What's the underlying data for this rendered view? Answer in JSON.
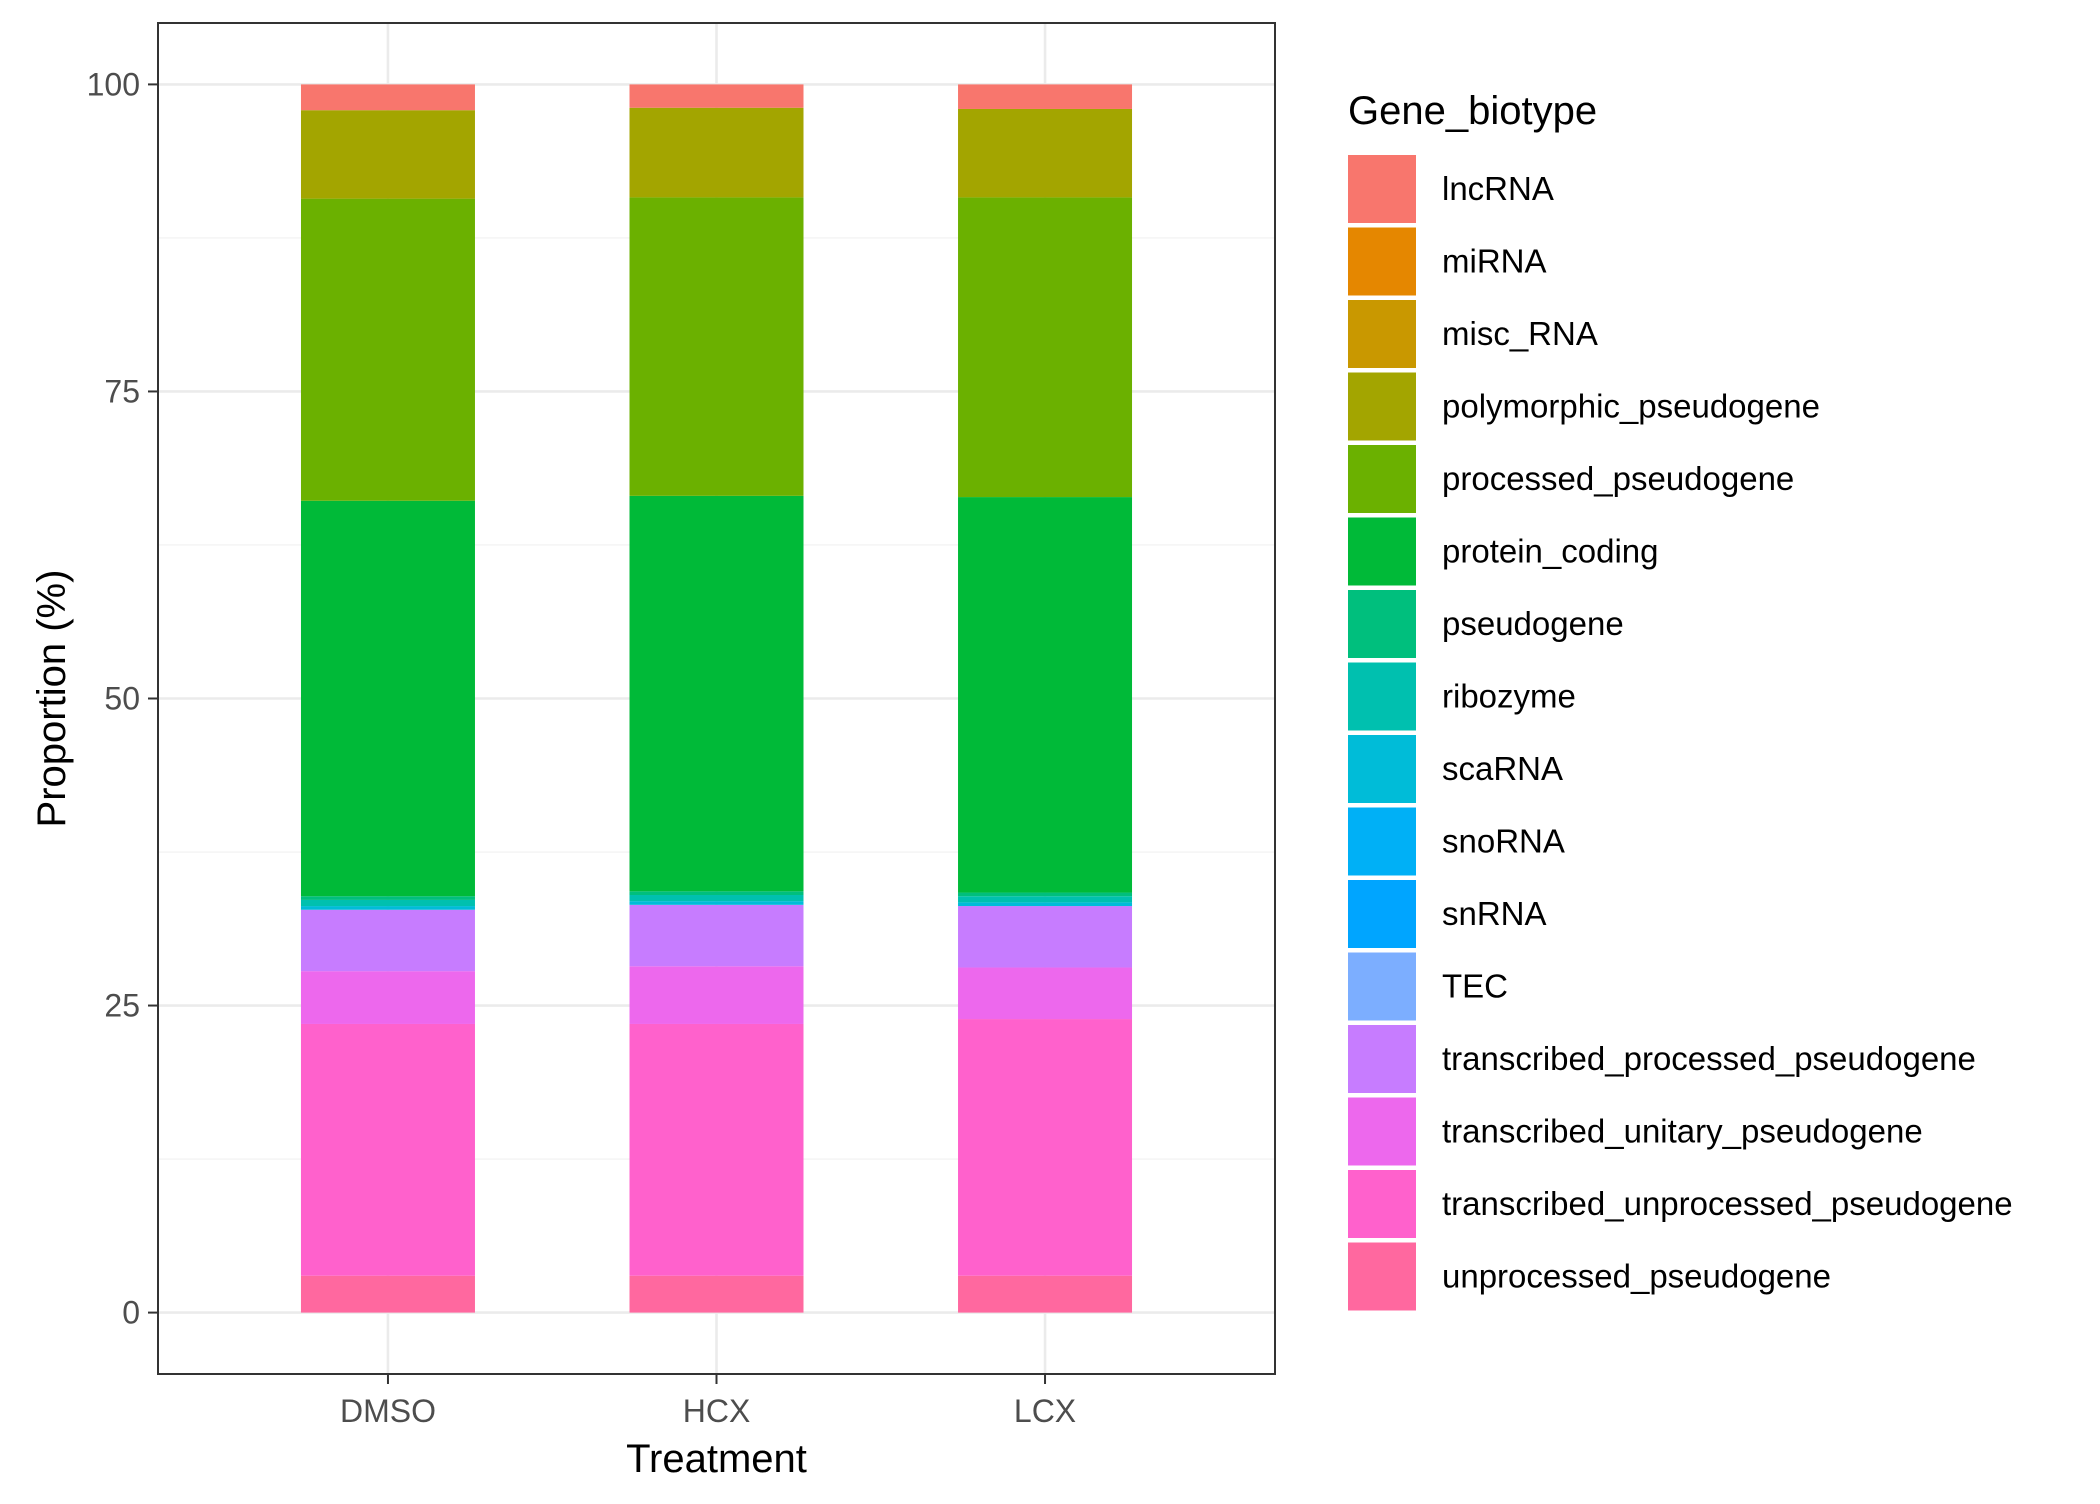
{
  "chart_data": {
    "type": "bar",
    "stacked": true,
    "xlabel": "Treatment",
    "ylabel": "Proportion (%)",
    "ylim": [
      -5,
      105
    ],
    "yticks": [
      0,
      25,
      50,
      75,
      100
    ],
    "grid": true,
    "legend_position": "right",
    "legend_title": "Gene_biotype",
    "categories": [
      "DMSO",
      "HCX",
      "LCX"
    ],
    "series": [
      {
        "name": "lncRNA",
        "color": "#F8766D",
        "values": [
          2.1,
          1.9,
          2.0
        ]
      },
      {
        "name": "miRNA",
        "color": "#E58700",
        "values": [
          0.0,
          0.0,
          0.0
        ]
      },
      {
        "name": "misc_RNA",
        "color": "#C99800",
        "values": [
          0.0,
          0.0,
          0.0
        ]
      },
      {
        "name": "polymorphic_pseudogene",
        "color": "#A3A500",
        "values": [
          7.2,
          7.3,
          7.2
        ]
      },
      {
        "name": "processed_pseudogene",
        "color": "#6BB100",
        "values": [
          24.6,
          24.3,
          24.4
        ]
      },
      {
        "name": "protein_coding",
        "color": "#00BA38",
        "values": [
          32.2,
          32.2,
          32.2
        ]
      },
      {
        "name": "pseudogene",
        "color": "#00BF7D",
        "values": [
          0.3,
          0.3,
          0.3
        ]
      },
      {
        "name": "ribozyme",
        "color": "#00C0AF",
        "values": [
          0.5,
          0.5,
          0.5
        ]
      },
      {
        "name": "scaRNA",
        "color": "#00BCD8",
        "values": [
          0.3,
          0.3,
          0.3
        ]
      },
      {
        "name": "snoRNA",
        "color": "#00B0F6",
        "values": [
          0.0,
          0.0,
          0.0
        ]
      },
      {
        "name": "snRNA",
        "color": "#00A5FF",
        "values": [
          0.0,
          0.0,
          0.0
        ]
      },
      {
        "name": "TEC",
        "color": "#7CAEFF",
        "values": [
          0.0,
          0.0,
          0.0
        ]
      },
      {
        "name": "transcribed_processed_pseudogene",
        "color": "#C77CFF",
        "values": [
          5.0,
          5.0,
          5.0
        ]
      },
      {
        "name": "transcribed_unitary_pseudogene",
        "color": "#ED68ED",
        "values": [
          4.3,
          4.7,
          4.2
        ]
      },
      {
        "name": "transcribed_unprocessed_pseudogene",
        "color": "#FF61CC",
        "values": [
          20.5,
          20.5,
          20.9
        ]
      },
      {
        "name": "unprocessed_pseudogene",
        "color": "#FF689F",
        "values": [
          3.0,
          3.0,
          3.0
        ]
      }
    ]
  }
}
